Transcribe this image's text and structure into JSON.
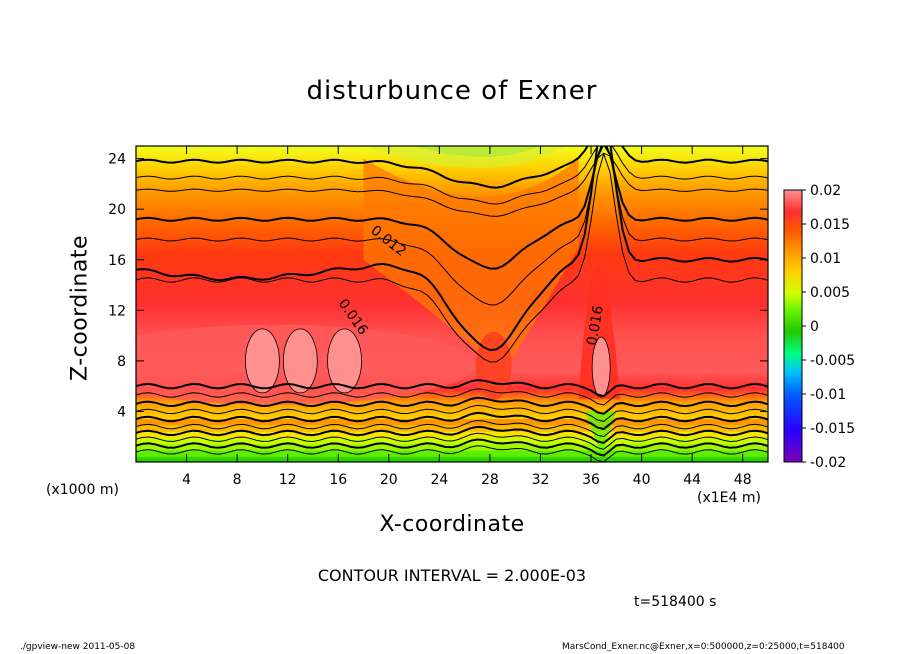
{
  "chart_data": {
    "type": "contour",
    "title": "disturbunce of Exner",
    "xlabel": "X-coordinate",
    "ylabel": "Z-coordinate",
    "x_unit_note": "(x1000 m)",
    "x_scale_note": "(x1E4 m)",
    "xlim": [
      0,
      50
    ],
    "ylim": [
      0,
      25
    ],
    "x_ticks": [
      4,
      8,
      12,
      16,
      20,
      24,
      28,
      32,
      36,
      40,
      44,
      48
    ],
    "y_ticks": [
      4,
      8,
      12,
      16,
      20,
      24
    ],
    "colorbar_ticks": [
      "0.02",
      "0.015",
      "0.01",
      "0.005",
      "0",
      "-0.005",
      "-0.01",
      "-0.015",
      "-0.02"
    ],
    "colorbar_range": [
      -0.02,
      0.02
    ],
    "contour_interval": "CONTOUR INTERVAL = 2.000E-03",
    "contour_labels": [
      "0.012",
      "0.016",
      "0.016"
    ],
    "time_label": "t=518400 s",
    "value_profile_by_z": [
      {
        "z": 0,
        "v": 0.001
      },
      {
        "z": 1,
        "v": 0.003
      },
      {
        "z": 2,
        "v": 0.005
      },
      {
        "z": 3,
        "v": 0.008
      },
      {
        "z": 4,
        "v": 0.012
      },
      {
        "z": 5,
        "v": 0.015
      },
      {
        "z": 6,
        "v": 0.017
      },
      {
        "z": 8,
        "v": 0.018
      },
      {
        "z": 10,
        "v": 0.016
      },
      {
        "z": 12,
        "v": 0.015
      },
      {
        "z": 14,
        "v": 0.014
      },
      {
        "z": 16,
        "v": 0.013
      },
      {
        "z": 18,
        "v": 0.012
      },
      {
        "z": 20,
        "v": 0.0105
      },
      {
        "z": 22,
        "v": 0.009
      },
      {
        "z": 24,
        "v": 0.0065
      },
      {
        "z": 25,
        "v": 0.006
      }
    ]
  },
  "footer": {
    "left": "./gpview-new   2011-05-08",
    "right": "MarsCond_Exner.nc@Exner,x=0:500000,z=0:25000,t=518400"
  },
  "colors": {
    "levels": [
      "#7a00b4",
      "#2a00ff",
      "#0060ff",
      "#00c0ff",
      "#00ff80",
      "#22c800",
      "#60f000",
      "#d0ff00",
      "#ffd000",
      "#ff9c00",
      "#ff5a00",
      "#ff3030",
      "#ff5a5a",
      "#ff9090"
    ]
  }
}
